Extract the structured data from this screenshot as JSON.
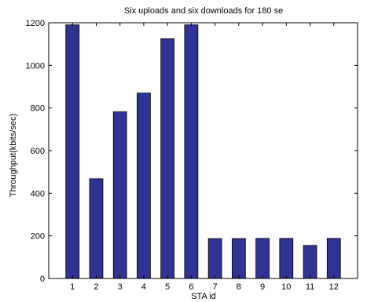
{
  "chart_data": {
    "type": "bar",
    "title": "Six uploads and six downloads for 180 se",
    "xlabel": "STA id",
    "ylabel": "Throughput(kbits/sec)",
    "categories": [
      "1",
      "2",
      "3",
      "4",
      "5",
      "6",
      "7",
      "8",
      "9",
      "10",
      "11",
      "12"
    ],
    "values": [
      1190,
      468,
      782,
      870,
      1125,
      1190,
      187,
      187,
      188,
      188,
      155,
      188
    ],
    "ylim": [
      0,
      1200
    ],
    "xlim": [
      0,
      13
    ],
    "yticks": [
      "0",
      "200",
      "400",
      "600",
      "800",
      "1000",
      "1200"
    ],
    "bar_color": "#2f3391",
    "grid": false
  }
}
